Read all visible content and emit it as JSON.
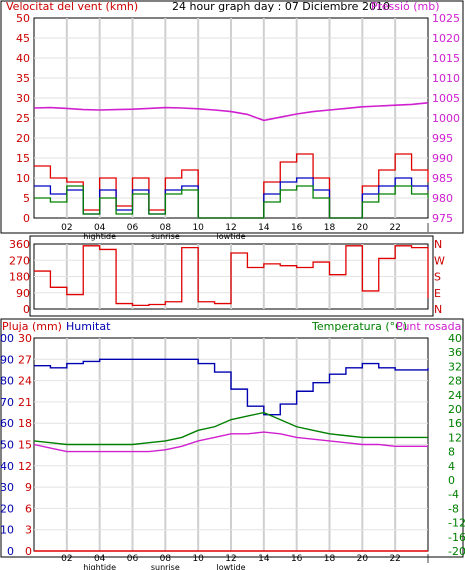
{
  "chart_data": [
    {
      "type": "line",
      "title": "24 hour graph day : 07 Diciembre 2010",
      "left_label": "Velocitat del vent (kmh)",
      "right_label": "Pressió (mb)",
      "left_ticks": [
        "0",
        "5",
        "10",
        "15",
        "20",
        "25",
        "30",
        "35",
        "40",
        "45",
        "50"
      ],
      "right_ticks": [
        "975",
        "980",
        "985",
        "990",
        "995",
        "1000",
        "1005",
        "1010",
        "1015",
        "1020",
        "1025"
      ],
      "ylim_left": [
        0,
        50
      ],
      "ylim_right": [
        975,
        1025
      ],
      "x_hours": [
        0,
        1,
        2,
        3,
        4,
        5,
        6,
        7,
        8,
        9,
        10,
        11,
        12,
        13,
        14,
        15,
        16,
        17,
        18,
        19,
        20,
        21,
        22,
        23,
        24
      ],
      "series": [
        {
          "key": "pressure",
          "color": "#d020d0",
          "axis": "right",
          "values": [
            1002.5,
            1002.6,
            1002.4,
            1002.1,
            1002.0,
            1002.1,
            1002.2,
            1002.4,
            1002.6,
            1002.5,
            1002.3,
            1002.0,
            1001.6,
            1000.9,
            999.4,
            1000.2,
            1001.0,
            1001.6,
            1002.0,
            1002.4,
            1002.8,
            1003.0,
            1003.2,
            1003.4,
            1003.8
          ]
        },
        {
          "key": "gust",
          "color": "#e00000",
          "axis": "left",
          "values": [
            13,
            10,
            9,
            2,
            10,
            3,
            10,
            2,
            10,
            12,
            0,
            0,
            0,
            0,
            9,
            14,
            16,
            10,
            0,
            0,
            8,
            12,
            16,
            12,
            9
          ]
        },
        {
          "key": "avg_wind",
          "color": "#0000c0",
          "axis": "left",
          "values": [
            8,
            6,
            7,
            1,
            7,
            2,
            7,
            1,
            7,
            8,
            0,
            0,
            0,
            0,
            6,
            9,
            10,
            7,
            0,
            0,
            6,
            8,
            10,
            8,
            7
          ]
        },
        {
          "key": "dir_wind",
          "color": "#008000",
          "axis": "left",
          "values": [
            5,
            4,
            8,
            1,
            5,
            1,
            6,
            1,
            6,
            7,
            0,
            0,
            0,
            0,
            4,
            7,
            8,
            5,
            0,
            0,
            4,
            6,
            8,
            6,
            5
          ]
        }
      ],
      "x_tick_labels": [
        "02",
        "04",
        "06",
        "08",
        "10",
        "12",
        "14",
        "16",
        "18",
        "20",
        "22",
        "|"
      ],
      "tide_labels": [
        "hightide",
        "sunrise",
        "lowtide"
      ]
    },
    {
      "type": "line",
      "left_ticks": [
        "0",
        "90",
        "180",
        "270",
        "360"
      ],
      "right_labels": [
        "N",
        "W",
        "S",
        "E",
        "N"
      ],
      "ylim": [
        0,
        360
      ],
      "series": [
        {
          "key": "direction",
          "color": "#e00000",
          "values": [
            210,
            120,
            80,
            350,
            330,
            30,
            20,
            25,
            40,
            340,
            40,
            30,
            310,
            230,
            250,
            240,
            230,
            260,
            190,
            350,
            100,
            280,
            350,
            340,
            60
          ]
        }
      ]
    },
    {
      "type": "line",
      "left_label_rain": "Pluja (mm)",
      "left_label_hum": "Humitat",
      "right_label_temp": "Temperatura (°C)",
      "right_label_dew": "Punt rosada",
      "rain_ticks": [
        "0",
        "3",
        "6",
        "9",
        "12",
        "15",
        "18",
        "21",
        "24",
        "27",
        "30"
      ],
      "hum_ticks": [
        "0",
        "10",
        "20",
        "30",
        "40",
        "50",
        "60",
        "70",
        "80",
        "90",
        "100"
      ],
      "temp_ticks": [
        "-20",
        "-16",
        "-12",
        "-8",
        "-4",
        "0",
        "4",
        "8",
        "12",
        "16",
        "20",
        "24",
        "28",
        "32",
        "36",
        "40"
      ],
      "ylim_hum": [
        0,
        100
      ],
      "ylim_temp": [
        -20,
        40
      ],
      "series": [
        {
          "key": "humidity",
          "color": "#0000b0",
          "axis": "hum",
          "values": [
            87,
            86,
            88,
            89,
            90,
            90,
            90,
            90,
            90,
            90,
            88,
            84,
            76,
            68,
            64,
            69,
            75,
            79,
            83,
            86,
            88,
            86,
            85,
            85,
            86
          ]
        },
        {
          "key": "temperature",
          "color": "#008000",
          "axis": "temp",
          "values": [
            11,
            10.5,
            10,
            10,
            10,
            10,
            10,
            10.5,
            11,
            12,
            14,
            15,
            17,
            18,
            19,
            17,
            15,
            14,
            13,
            12.5,
            12,
            12,
            12,
            12,
            12
          ]
        },
        {
          "key": "dewpoint",
          "color": "#d020d0",
          "axis": "temp",
          "values": [
            10,
            9,
            8,
            8,
            8,
            8,
            8,
            8,
            8.5,
            9.5,
            11,
            12,
            13,
            13,
            13.5,
            13,
            12,
            11.5,
            11,
            10.5,
            10,
            10,
            9.5,
            9.5,
            9.5
          ]
        },
        {
          "key": "rain",
          "color": "#e00000",
          "axis": "rain",
          "values": [
            0,
            0,
            0,
            0,
            0,
            0,
            0,
            0,
            0,
            0,
            0,
            0,
            0,
            0,
            0,
            0,
            0,
            0,
            0,
            0,
            0,
            0,
            0,
            0,
            0
          ]
        }
      ]
    }
  ]
}
